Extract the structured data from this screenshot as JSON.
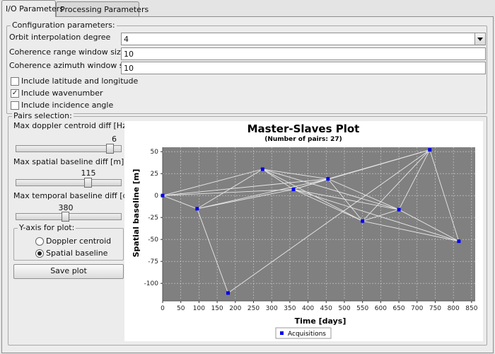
{
  "tabs": [
    {
      "label": "I/O Parameters",
      "active": true
    },
    {
      "label": "Processing Parameters",
      "active": false
    }
  ],
  "config": {
    "group_title": "Configuration parameters:",
    "orbit_label": "Orbit interpolation degree",
    "orbit_value": "4",
    "range_label": "Coherence range window size",
    "range_value": "10",
    "azimuth_label": "Coherence azimuth window size",
    "azimuth_value": "10",
    "latlon_label": "Include latitude and longitude",
    "latlon_checked": false,
    "wavenumber_label": "Include wavenumber",
    "wavenumber_checked": true,
    "incidence_label": "Include incidence angle",
    "incidence_checked": false
  },
  "pairs": {
    "group_title": "Pairs selection:",
    "doppler_label": "Max doppler centroid diff [Hz]",
    "doppler_value": "6",
    "doppler_fraction": 0.93,
    "spatial_label": "Max spatial baseline diff [m]",
    "spatial_value": "115",
    "spatial_fraction": 0.7,
    "temporal_label": "Max temporal baseline diff [days]",
    "temporal_value": "380",
    "temporal_fraction": 0.47,
    "yaxis_title": "Y-axis for plot:",
    "doppler_radio_label": "Doppler centroid",
    "spatial_radio_label": "Spatial baseline",
    "selected_axis": "spatial",
    "save_label": "Save plot"
  },
  "chart_data": {
    "type": "scatter",
    "title": "Master-Slaves Plot",
    "subtitle": "(Number of pairs: 27)",
    "xlabel": "Time [days]",
    "ylabel": "Spatial baseline [m]",
    "xlim": [
      0,
      860
    ],
    "ylim": [
      -120,
      55
    ],
    "xticks": [
      "0",
      "50",
      "100",
      "150",
      "200",
      "250",
      "300",
      "350",
      "400",
      "450",
      "500",
      "550",
      "600",
      "650",
      "700",
      "750",
      "800",
      "850"
    ],
    "yticks": [
      "50",
      "25",
      "0",
      "-25",
      "-50",
      "-75",
      "-100"
    ],
    "legend": "Acquisitions",
    "legend_position": "bottom",
    "grid": true,
    "plot_bg": "#808080",
    "point_color": "#0000ee",
    "line_color": "#e8e8e8",
    "points": [
      {
        "x": 0,
        "y": 0
      },
      {
        "x": 95,
        "y": -15
      },
      {
        "x": 180,
        "y": -111
      },
      {
        "x": 275,
        "y": 30
      },
      {
        "x": 360,
        "y": 7
      },
      {
        "x": 455,
        "y": 19
      },
      {
        "x": 550,
        "y": -29
      },
      {
        "x": 650,
        "y": -16
      },
      {
        "x": 735,
        "y": 52
      },
      {
        "x": 815,
        "y": -52
      }
    ],
    "pairs": [
      [
        0,
        1
      ],
      [
        0,
        3
      ],
      [
        0,
        5
      ],
      [
        1,
        2
      ],
      [
        1,
        3
      ],
      [
        1,
        4
      ],
      [
        2,
        8
      ],
      [
        3,
        4
      ],
      [
        3,
        5
      ],
      [
        3,
        6
      ],
      [
        3,
        7
      ],
      [
        4,
        5
      ],
      [
        4,
        6
      ],
      [
        4,
        7
      ],
      [
        4,
        8
      ],
      [
        5,
        6
      ],
      [
        5,
        7
      ],
      [
        5,
        8
      ],
      [
        6,
        7
      ],
      [
        6,
        8
      ],
      [
        6,
        9
      ],
      [
        7,
        8
      ],
      [
        7,
        9
      ],
      [
        8,
        9
      ],
      [
        0,
        4
      ],
      [
        1,
        5
      ],
      [
        4,
        9
      ]
    ]
  }
}
